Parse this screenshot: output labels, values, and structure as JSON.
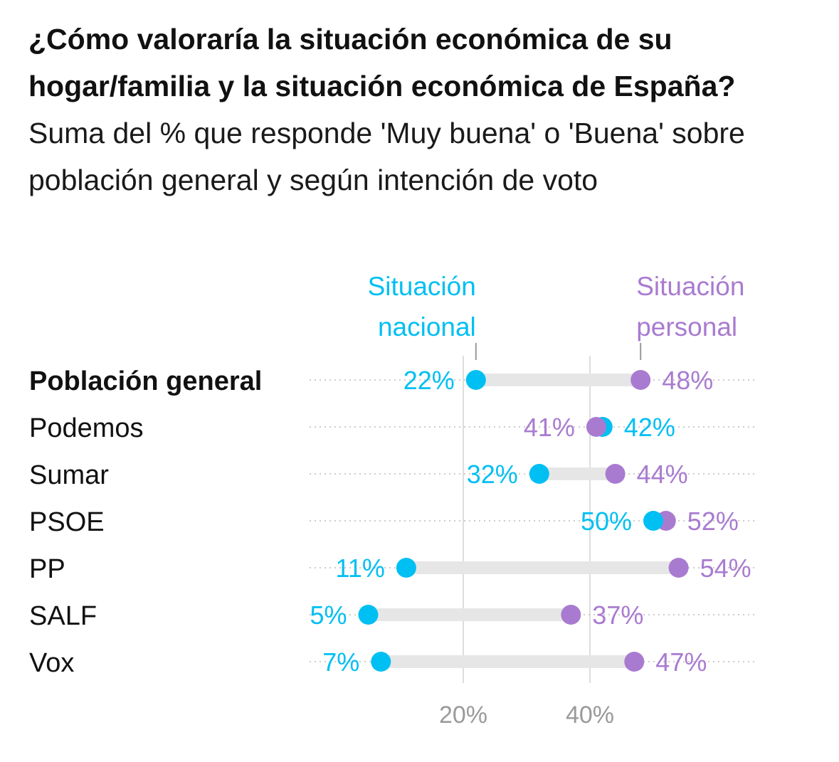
{
  "header": {
    "title": "¿Cómo valoraría la situación económica de su hogar/familia y la situación económica de España?",
    "subtitle": "Suma del % que responde 'Muy buena' o 'Buena' sobre población general y según intención de voto"
  },
  "colors": {
    "nacional": "#00bff3",
    "personal": "#a97bd0",
    "connector": "#e6e6e6",
    "gridline": "#dddddd",
    "dotted_guide": "#cccccc"
  },
  "chart_data": {
    "type": "dot-range",
    "title": "¿Cómo valoraría la situación económica de su hogar/familia y la situación económica de España?",
    "subtitle": "Suma del % que responde 'Muy buena' o 'Buena' sobre población general y según intención de voto",
    "series": [
      {
        "key": "nacional",
        "name": "Situación nacional",
        "name_lines": [
          "Situación",
          "nacional"
        ]
      },
      {
        "key": "personal",
        "name": "Situación personal",
        "name_lines": [
          "Situación",
          "personal"
        ]
      }
    ],
    "rows": [
      {
        "label": "Población general",
        "bold": true,
        "nacional": 22,
        "personal": 48
      },
      {
        "label": "Podemos",
        "bold": false,
        "nacional": 42,
        "personal": 41
      },
      {
        "label": "Sumar",
        "bold": false,
        "nacional": 32,
        "personal": 44
      },
      {
        "label": "PSOE",
        "bold": false,
        "nacional": 50,
        "personal": 52
      },
      {
        "label": "PP",
        "bold": false,
        "nacional": 11,
        "personal": 54
      },
      {
        "label": "SALF",
        "bold": false,
        "nacional": 5,
        "personal": 37
      },
      {
        "label": "Vox",
        "bold": false,
        "nacional": 7,
        "personal": 47
      }
    ],
    "x_ticks": [
      20,
      40
    ],
    "tick_labels": [
      "20%",
      "40%"
    ],
    "value_suffix": "%",
    "grid": true
  }
}
